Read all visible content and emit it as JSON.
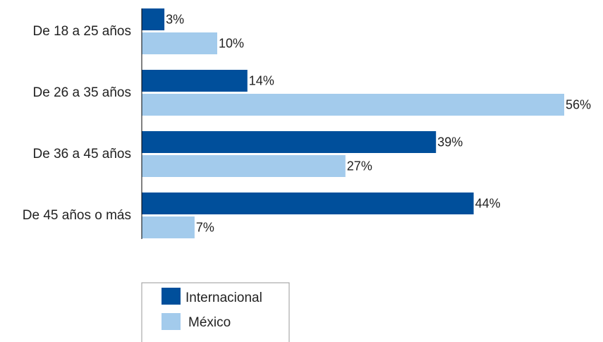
{
  "chart_data": {
    "type": "bar",
    "orientation": "horizontal",
    "categories": [
      "De 18 a 25 años",
      "De 26 a 35 años",
      "De 36 a 45 años",
      "De 45 años o más"
    ],
    "series": [
      {
        "name": "Internacional",
        "values": [
          3,
          14,
          39,
          44
        ],
        "labels": [
          "3%",
          "14%",
          "39%",
          "44%"
        ],
        "color": "#004f9b"
      },
      {
        "name": "México",
        "values": [
          10,
          56,
          27,
          7
        ],
        "labels": [
          "10%",
          "56%",
          "27%",
          "7%"
        ],
        "color": "#a3cbec"
      }
    ],
    "xlim": [
      0,
      56
    ],
    "grid": false,
    "legend": "bottom-left"
  },
  "colors": {
    "axis": "#000000",
    "text": "#222222",
    "legend_border": "#999999"
  }
}
